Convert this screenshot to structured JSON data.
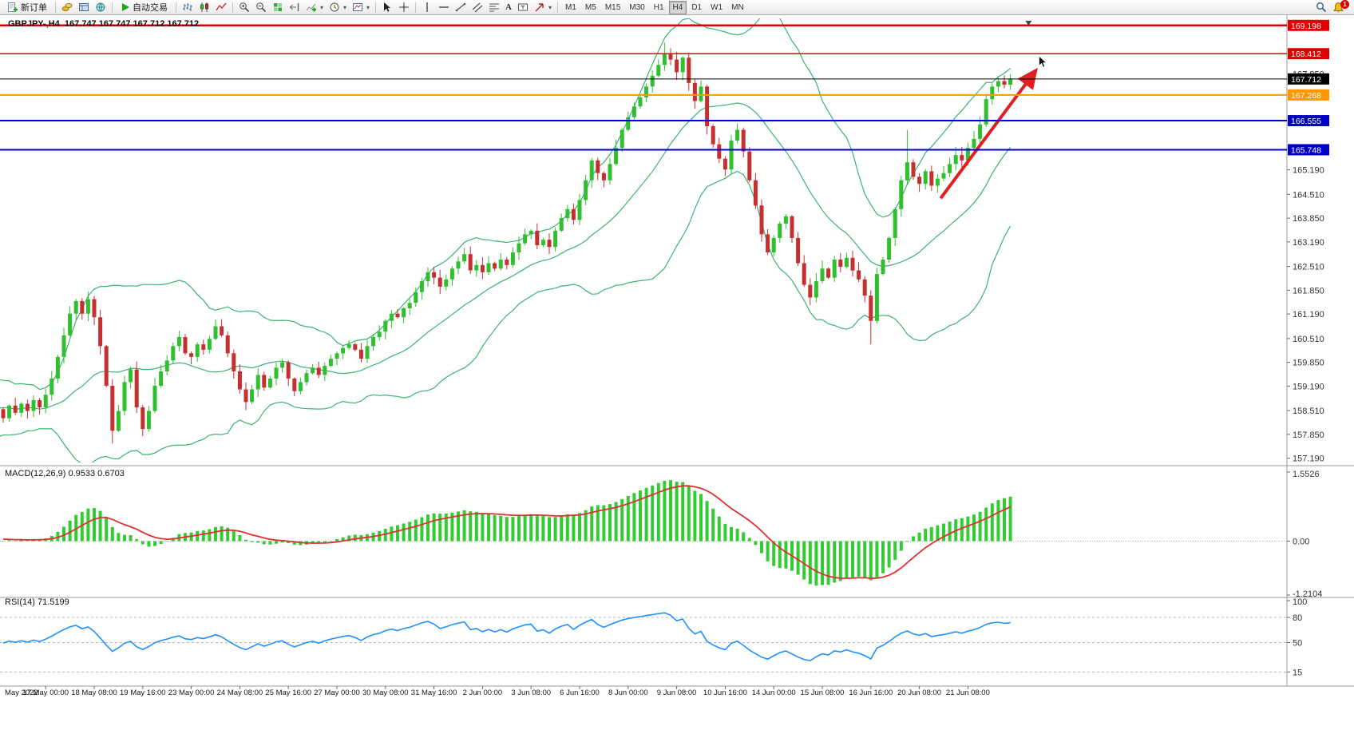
{
  "toolbar": {
    "new_order_label": "新订单",
    "auto_trading_label": "自动交易",
    "timeframes": [
      "M1",
      "M5",
      "M15",
      "M30",
      "H1",
      "H4",
      "D1",
      "W1",
      "MN"
    ],
    "active_timeframe": "H4",
    "alert_badge": "1"
  },
  "panels": {
    "symbol_info": "GBPJPY-,H4  167.747 167.747 167.712 167.712",
    "macd_label": "MACD(12,26,9) 0.9533 0.6703",
    "rsi_label": "RSI(14) 71.5199"
  },
  "chart_data": {
    "type": "candlestick",
    "symbol": "GBPJPY-",
    "timeframe": "H4",
    "current": {
      "open": 167.747,
      "high": 167.747,
      "low": 167.712,
      "close": 167.712
    },
    "y_axis": {
      "min": 157.116,
      "max": 169.348,
      "ticks": [
        167.85,
        165.19,
        164.51,
        163.85,
        163.19,
        162.51,
        161.85,
        161.19,
        160.51,
        159.85,
        159.19,
        158.51,
        157.85,
        157.19
      ]
    },
    "price_lines": [
      {
        "price": 169.198,
        "label": "169.198",
        "color": "#e00000",
        "width": 2.5
      },
      {
        "price": 168.412,
        "label": "168.412",
        "color": "#e00000",
        "width": 1.5
      },
      {
        "price": 167.712,
        "label": "167.712",
        "color": "#000000",
        "width": 1
      },
      {
        "price": 167.268,
        "label": "167.268",
        "color": "#ff9800",
        "width": 2
      },
      {
        "price": 166.555,
        "label": "166.555",
        "color": "#0000c8",
        "width": 2
      },
      {
        "price": 165.748,
        "label": "165.748",
        "color": "#0000c8",
        "width": 2
      }
    ],
    "time_labels": [
      "May 2022",
      "17 May 00:00",
      "18 May 08:00",
      "19 May 16:00",
      "23 May 00:00",
      "24 May 08:00",
      "25 May 16:00",
      "27 May 00:00",
      "30 May 08:00",
      "31 May 16:00",
      "2 Jun 00:00",
      "3 Jun 08:00",
      "6 Jun 16:00",
      "8 Jun 00:00",
      "9 Jun 08:00",
      "10 Jun 16:00",
      "14 Jun 00:00",
      "15 Jun 08:00",
      "16 Jun 16:00",
      "20 Jun 08:00",
      "21 Jun 08:00"
    ],
    "pre_closes": [
      158.2,
      158.9,
      158.4,
      159.1,
      158.6,
      157.9,
      158.8,
      159.2,
      158.3,
      158.0,
      158.9,
      159.3,
      158.5,
      158.1,
      158.7,
      159.0,
      158.3,
      158.6,
      159.1,
      158.4,
      158.0,
      158.6,
      158.9,
      158.3,
      158.55
    ],
    "closes": [
      158.3,
      158.65,
      158.45,
      158.7,
      158.5,
      158.8,
      158.6,
      158.95,
      159.4,
      160.0,
      160.6,
      161.2,
      161.55,
      161.2,
      161.6,
      161.1,
      160.3,
      159.2,
      157.95,
      158.5,
      159.3,
      159.65,
      158.6,
      158.0,
      158.5,
      159.2,
      159.6,
      159.9,
      160.3,
      160.55,
      160.1,
      160.0,
      160.35,
      160.2,
      160.5,
      160.85,
      160.6,
      160.1,
      159.6,
      159.1,
      158.75,
      159.1,
      159.5,
      159.15,
      159.4,
      159.7,
      159.85,
      159.4,
      159.05,
      159.3,
      159.55,
      159.7,
      159.5,
      159.75,
      159.95,
      160.1,
      160.25,
      160.35,
      160.2,
      159.95,
      160.3,
      160.55,
      160.7,
      161.0,
      161.2,
      161.1,
      161.35,
      161.5,
      161.8,
      162.1,
      162.35,
      162.2,
      161.95,
      162.15,
      162.45,
      162.65,
      162.85,
      162.4,
      162.55,
      162.35,
      162.6,
      162.45,
      162.7,
      162.55,
      162.9,
      163.15,
      163.4,
      163.5,
      163.1,
      163.25,
      163.05,
      163.5,
      163.85,
      164.1,
      163.8,
      164.35,
      164.9,
      165.45,
      165.1,
      164.9,
      165.35,
      165.8,
      166.3,
      166.65,
      166.95,
      167.2,
      167.5,
      167.8,
      168.1,
      168.4,
      168.25,
      167.9,
      168.3,
      167.6,
      167.1,
      167.5,
      166.4,
      165.9,
      165.5,
      165.2,
      166.0,
      166.3,
      165.7,
      164.9,
      164.2,
      163.4,
      162.9,
      163.3,
      163.7,
      163.9,
      163.3,
      162.6,
      162.0,
      161.65,
      162.1,
      162.45,
      162.2,
      162.7,
      162.5,
      162.75,
      162.4,
      162.15,
      161.7,
      161.0,
      162.3,
      162.7,
      163.3,
      164.1,
      164.9,
      165.4,
      165.0,
      164.8,
      165.15,
      164.75,
      164.95,
      165.1,
      165.35,
      165.6,
      165.45,
      165.8,
      166.05,
      166.45,
      167.15,
      167.5,
      167.65,
      167.55,
      167.712
    ],
    "wick_overrides": [
      [
        18,
        "low",
        157.6
      ],
      [
        109,
        "high",
        168.72
      ],
      [
        143,
        "low",
        160.35
      ],
      [
        149,
        "high",
        166.3
      ]
    ],
    "colors": {
      "bull": "#2fbf2f",
      "bear": "#c62f2f",
      "bollinger": "#3cb371",
      "macd_hist": "#32cd32",
      "macd_signal": "#e03030",
      "rsi": "#1e90ff"
    },
    "indicators": {
      "bollinger": {
        "period": 20,
        "deviation": 2
      },
      "macd": {
        "fast": 12,
        "slow": 26,
        "signal": 9,
        "value": 0.9533,
        "signal_value": 0.6703,
        "scale": {
          "top": "1.5526",
          "zero": "0.00",
          "bottom": "-1.2104"
        }
      },
      "rsi": {
        "period": 14,
        "value": 71.5199,
        "levels": [
          80,
          50,
          15
        ],
        "scale_labels": [
          "100",
          "80",
          "50",
          "15"
        ]
      }
    },
    "trend_arrow": {
      "from": [
        154.5,
        164.4
      ],
      "to": [
        170.2,
        167.95
      ],
      "color": "#e02020"
    }
  }
}
